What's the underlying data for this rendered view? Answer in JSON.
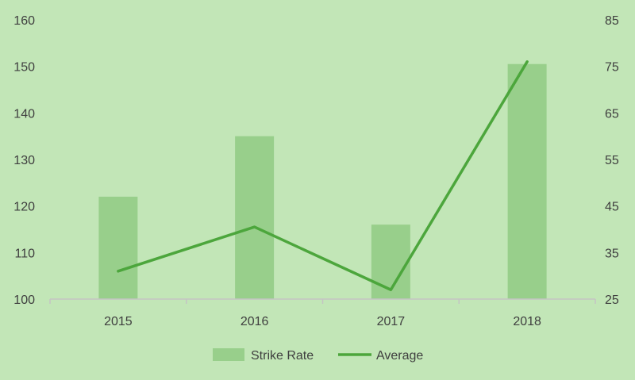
{
  "chart_data": {
    "type": "bar",
    "categories": [
      "2015",
      "2016",
      "2017",
      "2018"
    ],
    "series": [
      {
        "name": "Strike Rate",
        "type": "bar",
        "axis": "left",
        "values": [
          122,
          135,
          116,
          150.5
        ]
      },
      {
        "name": "Average",
        "type": "line",
        "axis": "right",
        "values": [
          31,
          40.5,
          27,
          76
        ]
      }
    ],
    "y_left": {
      "ylim": [
        100,
        160
      ],
      "ticks": [
        "100",
        "110",
        "120",
        "130",
        "140",
        "150",
        "160"
      ]
    },
    "y_right": {
      "ylim": [
        25,
        85
      ],
      "ticks": [
        "25",
        "35",
        "45",
        "55",
        "65",
        "75",
        "85"
      ]
    },
    "grid": false,
    "legend_position": "bottom"
  },
  "colors": {
    "background": "#c2e6b7",
    "bar": "#98cf8b",
    "line": "#4ca63c",
    "axis": "#c4c4c4",
    "text": "#3f3f3f"
  }
}
